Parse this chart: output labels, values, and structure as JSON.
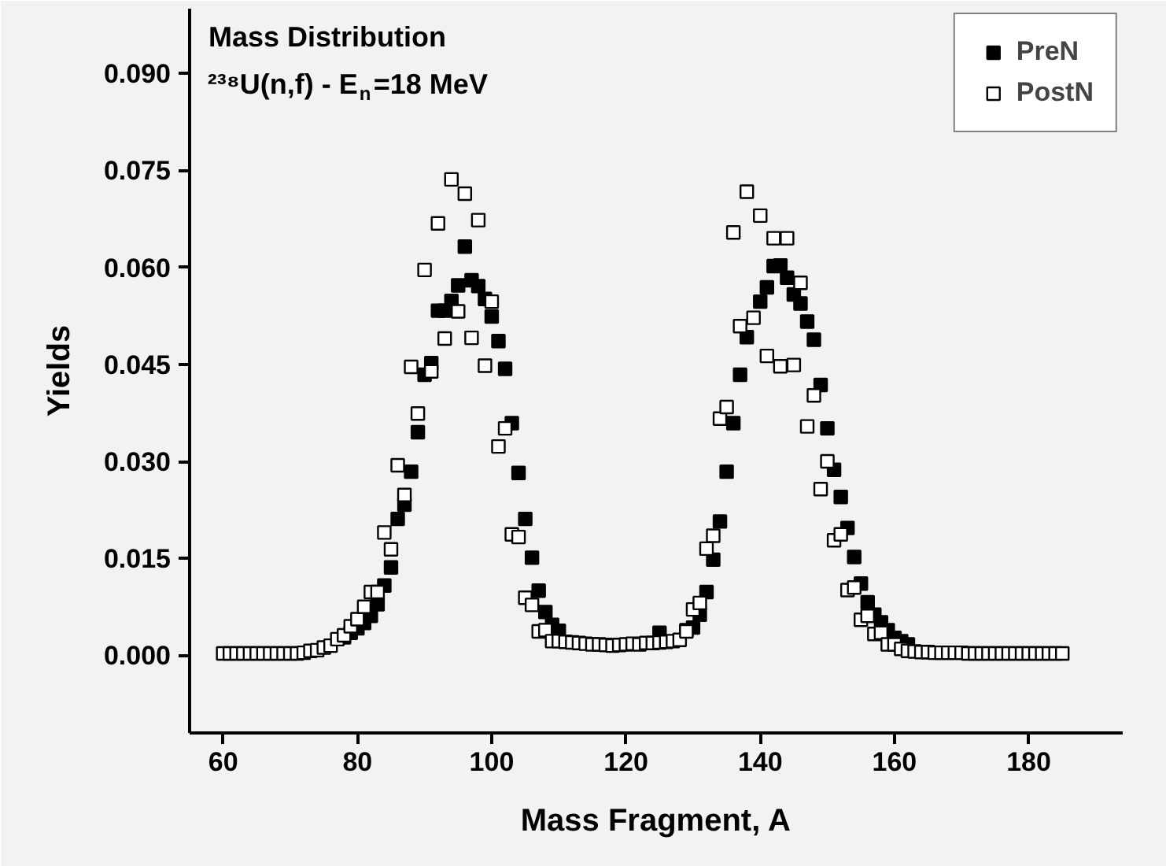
{
  "chart_data": {
    "type": "scatter",
    "title": "Mass Distribution",
    "subtitle": "²³⁸U(n,f) - E$_{n}$=18 MeV",
    "xlabel": "Mass Fragment, A",
    "ylabel": "Yields",
    "xlim": [
      55,
      194
    ],
    "ylim": [
      -0.012,
      0.1
    ],
    "xticks": [
      60,
      80,
      100,
      120,
      140,
      160,
      180
    ],
    "yticks": [
      {
        "value": 0,
        "label": "0.000"
      },
      {
        "value": 0.015,
        "label": "0.015"
      },
      {
        "value": 0.03,
        "label": "0.030"
      },
      {
        "value": 0.045,
        "label": "0.045"
      },
      {
        "value": 0.06,
        "label": "0.060"
      },
      {
        "value": 0.075,
        "label": "0.075"
      },
      {
        "value": 0.09,
        "label": "0.090"
      }
    ],
    "grid": false,
    "legend": "top right",
    "marker": "square",
    "series": [
      {
        "name": "PreN",
        "color": "#000000",
        "x": [
          78,
          79,
          80,
          81,
          82,
          83,
          84,
          85,
          86,
          87,
          88,
          89,
          90,
          91,
          92,
          93,
          94,
          95,
          96,
          97,
          98,
          99,
          100,
          101,
          102,
          103,
          104,
          105,
          106,
          107,
          108,
          109,
          110,
          111,
          112,
          113,
          114,
          115,
          116,
          117,
          118,
          119,
          120,
          121,
          122,
          123,
          124,
          125,
          126,
          127,
          128,
          129,
          130,
          131,
          132,
          133,
          134,
          135,
          136,
          137,
          138,
          139,
          140,
          141,
          142,
          143,
          144,
          145,
          146,
          147,
          148,
          149,
          150,
          151,
          152,
          153,
          154,
          155,
          156,
          157,
          158,
          159,
          160,
          161,
          162
        ],
        "values": [
          0.0028,
          0.0035,
          0.0042,
          0.005,
          0.0061,
          0.0079,
          0.0108,
          0.0136,
          0.0211,
          0.0233,
          0.0284,
          0.0345,
          0.0434,
          0.0452,
          0.0533,
          0.0533,
          0.0548,
          0.0572,
          0.0632,
          0.058,
          0.0571,
          0.0551,
          0.0524,
          0.0486,
          0.0443,
          0.0359,
          0.0282,
          0.0211,
          0.0151,
          0.01,
          0.0067,
          0.0047,
          0.0038,
          null,
          null,
          null,
          null,
          null,
          null,
          null,
          null,
          null,
          null,
          null,
          null,
          null,
          null,
          0.0035,
          null,
          null,
          null,
          0.0039,
          0.0043,
          0.0063,
          0.0098,
          0.0148,
          0.0207,
          0.0284,
          0.0359,
          0.0434,
          0.0492,
          null,
          0.0547,
          0.0569,
          0.0602,
          0.0603,
          0.0584,
          0.0558,
          0.0544,
          0.0516,
          0.0488,
          0.0418,
          0.0351,
          0.0287,
          0.0245,
          0.0197,
          0.0152,
          0.0111,
          0.0082,
          0.0063,
          0.0051,
          0.0039,
          0.0027,
          0.0022,
          0.0017
        ]
      },
      {
        "name": "PostN",
        "color": "#000000",
        "x": [
          60,
          61,
          62,
          63,
          64,
          65,
          66,
          67,
          68,
          69,
          70,
          71,
          72,
          73,
          74,
          75,
          76,
          77,
          78,
          79,
          80,
          81,
          82,
          83,
          84,
          85,
          86,
          87,
          88,
          89,
          90,
          91,
          92,
          93,
          94,
          95,
          96,
          97,
          98,
          99,
          100,
          101,
          102,
          103,
          104,
          105,
          106,
          107,
          108,
          109,
          110,
          111,
          112,
          113,
          114,
          115,
          116,
          117,
          118,
          119,
          120,
          121,
          122,
          123,
          124,
          125,
          126,
          127,
          128,
          129,
          130,
          131,
          132,
          133,
          134,
          135,
          136,
          137,
          138,
          139,
          140,
          141,
          142,
          143,
          144,
          145,
          146,
          147,
          148,
          149,
          150,
          151,
          152,
          153,
          154,
          155,
          156,
          157,
          158,
          159,
          160,
          161,
          162,
          163,
          164,
          165,
          166,
          167,
          168,
          169,
          170,
          171,
          172,
          173,
          174,
          175,
          176,
          177,
          178,
          179,
          180,
          181,
          182,
          183,
          184,
          185
        ],
        "values": [
          0.0003,
          0.0003,
          0.0003,
          0.0003,
          0.0003,
          0.0003,
          0.0003,
          0.0003,
          0.0003,
          0.0003,
          0.0003,
          0.0003,
          0.0004,
          0.0007,
          0.0008,
          0.0012,
          0.0015,
          0.0025,
          0.0031,
          0.0045,
          0.0056,
          0.0075,
          0.0098,
          0.0098,
          0.019,
          0.0164,
          0.0294,
          0.0248,
          0.0446,
          0.0374,
          0.0596,
          0.0439,
          0.0668,
          0.049,
          0.0736,
          0.0532,
          0.0714,
          0.0491,
          0.0673,
          0.0448,
          0.0547,
          0.0323,
          0.0351,
          0.0187,
          0.0183,
          0.0089,
          0.0078,
          0.0037,
          0.0039,
          0.0022,
          0.0022,
          0.0021,
          0.002,
          0.0019,
          0.0018,
          0.0017,
          0.0017,
          0.0016,
          0.0015,
          0.0016,
          0.0017,
          0.0018,
          0.0017,
          0.0019,
          0.0019,
          0.002,
          0.0021,
          0.0022,
          0.0024,
          0.0037,
          0.0071,
          0.0081,
          0.0165,
          0.0185,
          0.0366,
          0.0384,
          0.0654,
          0.0509,
          0.0717,
          0.0522,
          0.068,
          0.0463,
          0.0645,
          0.0447,
          0.0645,
          0.0449,
          0.0576,
          0.0354,
          0.0402,
          0.0257,
          0.03,
          0.0178,
          0.0187,
          0.0101,
          0.0105,
          0.0055,
          0.0061,
          0.0033,
          0.0035,
          0.0017,
          0.0017,
          0.001,
          0.0007,
          0.0006,
          0.0005,
          0.0005,
          0.0004,
          0.0004,
          0.0004,
          0.0004,
          0.0004,
          0.0003,
          0.0003,
          0.0003,
          0.0003,
          0.0003,
          0.0003,
          0.0003,
          0.0003,
          0.0003,
          0.0003,
          0.0003,
          0.0003,
          0.0003,
          0.0003,
          0.0003
        ]
      }
    ]
  }
}
